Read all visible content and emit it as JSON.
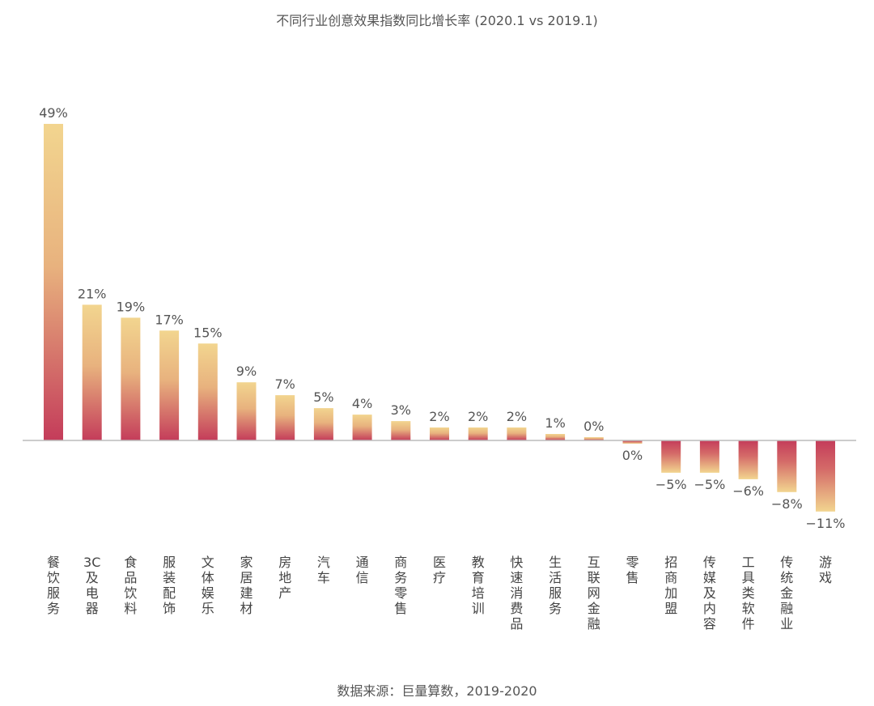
{
  "chart_data": {
    "type": "bar",
    "title": "不同行业创意效果指数同比增长率 (2020.1 vs 2019.1)",
    "source": "数据来源：巨量算数，2019-2020",
    "xlabel": "",
    "ylabel": "",
    "ylim": [
      -11,
      49
    ],
    "grid": false,
    "legend": "none",
    "categories": [
      "餐饮服务",
      "3C及电器",
      "食品饮料",
      "服装配饰",
      "文体娱乐",
      "家居建材",
      "房地产",
      "汽车",
      "通信",
      "商务零售",
      "医疗",
      "教育培训",
      "快速消费品",
      "生活服务",
      "互联网金融",
      "零售",
      "招商加盟",
      "传媒及内容",
      "工具类软件",
      "传统金融业",
      "游戏"
    ],
    "values": [
      49,
      21,
      19,
      17,
      15,
      9,
      7,
      5,
      4,
      3,
      2,
      2,
      2,
      1,
      0.5,
      -0.5,
      -5,
      -5,
      -6,
      -8,
      -11
    ],
    "value_labels": [
      "49%",
      "21%",
      "19%",
      "17%",
      "15%",
      "9%",
      "7%",
      "5%",
      "4%",
      "3%",
      "2%",
      "2%",
      "2%",
      "1%",
      "0%",
      "0%",
      "−5%",
      "−5%",
      "−6%",
      "−8%",
      "−11%"
    ],
    "colors": {
      "bar_light": "#F2D58F",
      "bar_dark": "#C43C5A",
      "axis": "#bbbbbb",
      "text": "#555555"
    }
  }
}
